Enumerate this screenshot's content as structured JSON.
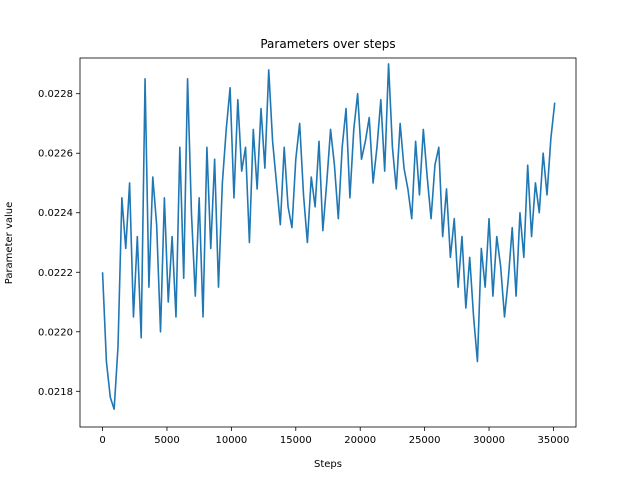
{
  "chart_data": {
    "type": "line",
    "title": "Parameters over steps",
    "xlabel": "Steps",
    "ylabel": "Parameter value",
    "xlim": [
      -1750,
      36750
    ],
    "ylim": [
      0.02168,
      0.02292
    ],
    "xticks": [
      0,
      5000,
      10000,
      15000,
      20000,
      25000,
      30000,
      35000
    ],
    "xtick_labels": [
      "0",
      "5000",
      "10000",
      "15000",
      "20000",
      "25000",
      "30000",
      "35000"
    ],
    "yticks": [
      0.0218,
      0.022,
      0.0222,
      0.0224,
      0.0226,
      0.0228
    ],
    "ytick_labels": [
      "0.0218",
      "0.0220",
      "0.0222",
      "0.0224",
      "0.0226",
      "0.0228"
    ],
    "grid": false,
    "line_color": "#1f77b4",
    "series": [
      {
        "x": [
          0,
          300,
          600,
          900,
          1200,
          1500,
          1800,
          2100,
          2400,
          2700,
          3000,
          3300,
          3600,
          3900,
          4200,
          4500,
          4800,
          5100,
          5400,
          5700,
          6000,
          6300,
          6600,
          6900,
          7200,
          7500,
          7800,
          8100,
          8400,
          8700,
          9000,
          9300,
          9600,
          9900,
          10200,
          10500,
          10800,
          11100,
          11400,
          11700,
          12000,
          12300,
          12600,
          12900,
          13200,
          13500,
          13800,
          14100,
          14400,
          14700,
          15000,
          15300,
          15600,
          15900,
          16200,
          16500,
          16800,
          17100,
          17400,
          17700,
          18000,
          18300,
          18600,
          18900,
          19200,
          19500,
          19800,
          20100,
          20400,
          20700,
          21000,
          21300,
          21600,
          21900,
          22200,
          22500,
          22800,
          23100,
          23400,
          23700,
          24000,
          24300,
          24600,
          24900,
          25200,
          25500,
          25800,
          26100,
          26400,
          26700,
          27000,
          27300,
          27600,
          27900,
          28200,
          28500,
          28800,
          29100,
          29400,
          29700,
          30000,
          30300,
          30600,
          30900,
          31200,
          31500,
          31800,
          32100,
          32400,
          32700,
          33000,
          33300,
          33600,
          33900,
          34200,
          34500,
          34800,
          35100
        ],
        "y": [
          0.0222,
          0.0219,
          0.02178,
          0.02174,
          0.02195,
          0.02245,
          0.02228,
          0.0225,
          0.02205,
          0.02232,
          0.02198,
          0.02285,
          0.02215,
          0.02252,
          0.02236,
          0.022,
          0.02245,
          0.0221,
          0.02232,
          0.02205,
          0.02262,
          0.02218,
          0.02285,
          0.0224,
          0.02212,
          0.02245,
          0.02205,
          0.02262,
          0.02228,
          0.02258,
          0.02215,
          0.0225,
          0.02268,
          0.02282,
          0.02245,
          0.02278,
          0.02254,
          0.02262,
          0.0223,
          0.02268,
          0.02248,
          0.02275,
          0.02255,
          0.02288,
          0.02264,
          0.0225,
          0.02236,
          0.02262,
          0.02242,
          0.02235,
          0.02258,
          0.0227,
          0.02246,
          0.0223,
          0.02252,
          0.02242,
          0.02264,
          0.02234,
          0.0225,
          0.02268,
          0.02256,
          0.02238,
          0.02262,
          0.02275,
          0.02245,
          0.02268,
          0.0228,
          0.02258,
          0.02264,
          0.02272,
          0.0225,
          0.02262,
          0.02278,
          0.02254,
          0.0229,
          0.02262,
          0.02248,
          0.0227,
          0.02255,
          0.02248,
          0.02238,
          0.02264,
          0.02246,
          0.02268,
          0.02252,
          0.02238,
          0.02256,
          0.02262,
          0.02232,
          0.02248,
          0.02225,
          0.02238,
          0.02215,
          0.02232,
          0.02208,
          0.02225,
          0.02205,
          0.0219,
          0.02228,
          0.02215,
          0.02238,
          0.02212,
          0.02232,
          0.02222,
          0.02205,
          0.02218,
          0.02235,
          0.02212,
          0.0224,
          0.02225,
          0.02256,
          0.02232,
          0.0225,
          0.0224,
          0.0226,
          0.02246,
          0.02265,
          0.02277
        ]
      }
    ]
  }
}
